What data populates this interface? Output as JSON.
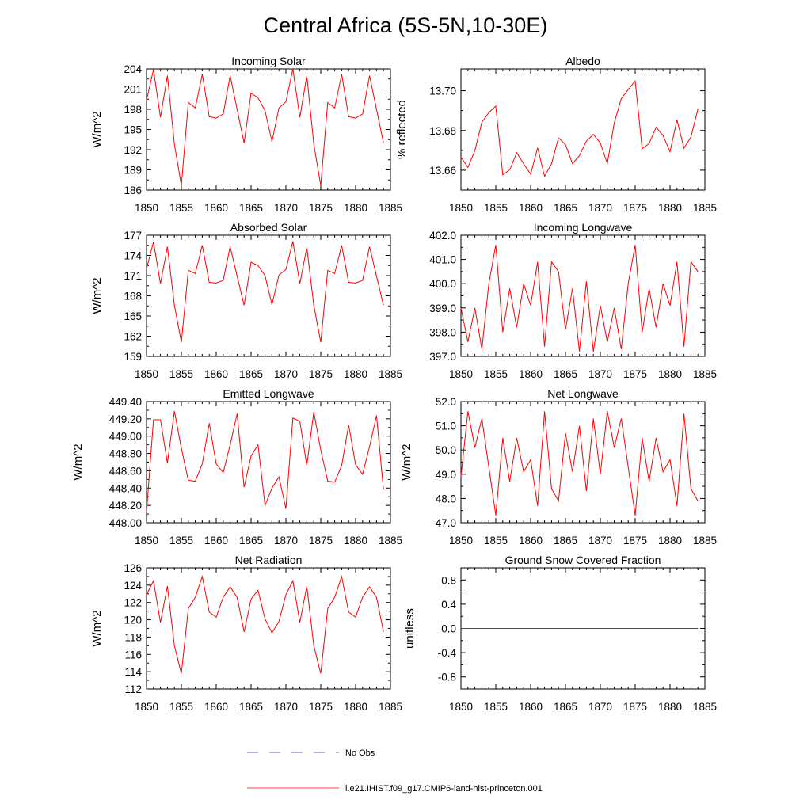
{
  "title": "Central Africa (5S-5N,10-30E)",
  "chart_data": [
    {
      "type": "line",
      "title": "Incoming Solar",
      "ylabel": "W/m^2",
      "xlabel": "",
      "xlim": [
        1850,
        1885
      ],
      "xticks": [
        1850,
        1855,
        1860,
        1865,
        1870,
        1875,
        1880,
        1885
      ],
      "ylim": [
        186,
        204
      ],
      "yticks": [
        186,
        189,
        192,
        195,
        198,
        201,
        204
      ],
      "ytick_labels": [
        "186",
        "189",
        "192",
        "195",
        "198",
        "201",
        "204"
      ],
      "grid": false,
      "series": [
        {
          "name": "i.e21.IHIST.f09_g17.CMIP6-land-hist-princeton.001",
          "color": "#ff0000",
          "x": [
            1850,
            1851,
            1852,
            1853,
            1854,
            1855,
            1856,
            1857,
            1858,
            1859,
            1860,
            1861,
            1862,
            1863,
            1864,
            1865,
            1866,
            1867,
            1868,
            1869,
            1870,
            1871,
            1872,
            1873,
            1874,
            1875,
            1876,
            1877,
            1878,
            1879,
            1880,
            1881,
            1882,
            1883,
            1884
          ],
          "values": [
            199.3,
            203.9,
            196.8,
            203.0,
            192.8,
            186.7,
            199.0,
            198.2,
            203.2,
            196.9,
            196.7,
            197.3,
            203.0,
            198.0,
            193.0,
            200.4,
            199.7,
            197.8,
            193.2,
            198.2,
            199.1,
            204.0,
            196.8,
            203.0,
            192.8,
            186.7,
            199.0,
            198.2,
            203.2,
            196.9,
            196.7,
            197.3,
            203.0,
            198.0,
            193.0
          ]
        }
      ]
    },
    {
      "type": "line",
      "title": "Albedo",
      "ylabel": "% reflected",
      "xlabel": "",
      "xlim": [
        1850,
        1885
      ],
      "xticks": [
        1850,
        1855,
        1860,
        1865,
        1870,
        1875,
        1880,
        1885
      ],
      "ylim": [
        13.65,
        13.711
      ],
      "yticks": [
        13.66,
        13.68,
        13.7
      ],
      "ytick_labels": [
        "13.66",
        "13.68",
        "13.70"
      ],
      "grid": false,
      "series": [
        {
          "name": "i.e21.IHIST.f09_g17.CMIP6-land-hist-princeton.001",
          "color": "#ff0000",
          "x": [
            1850,
            1851,
            1852,
            1853,
            1854,
            1855,
            1856,
            1857,
            1858,
            1859,
            1860,
            1861,
            1862,
            1863,
            1864,
            1865,
            1866,
            1867,
            1868,
            1869,
            1870,
            1871,
            1872,
            1873,
            1874,
            1875,
            1876,
            1877,
            1878,
            1879,
            1880,
            1881,
            1882,
            1883,
            1884
          ],
          "values": [
            13.6666,
            13.6614,
            13.6699,
            13.6842,
            13.689,
            13.6923,
            13.6577,
            13.6602,
            13.6688,
            13.6632,
            13.658,
            13.6713,
            13.6569,
            13.6633,
            13.6763,
            13.6729,
            13.6634,
            13.6673,
            13.6747,
            13.678,
            13.6737,
            13.6633,
            13.6839,
            13.696,
            13.7006,
            13.7049,
            13.6708,
            13.6734,
            13.6816,
            13.6775,
            13.6693,
            13.6854,
            13.6711,
            13.6767,
            13.6907
          ]
        }
      ]
    },
    {
      "type": "line",
      "title": "Absorbed Solar",
      "ylabel": "W/m^2",
      "xlabel": "",
      "xlim": [
        1850,
        1885
      ],
      "xticks": [
        1850,
        1855,
        1860,
        1865,
        1870,
        1875,
        1880,
        1885
      ],
      "ylim": [
        159,
        177
      ],
      "yticks": [
        159,
        162,
        165,
        168,
        171,
        174,
        177
      ],
      "ytick_labels": [
        "159",
        "162",
        "165",
        "168",
        "171",
        "174",
        "177"
      ],
      "grid": false,
      "series": [
        {
          "name": "i.e21.IHIST.f09_g17.CMIP6-land-hist-princeton.001",
          "color": "#ff0000",
          "x": [
            1850,
            1851,
            1852,
            1853,
            1854,
            1855,
            1856,
            1857,
            1858,
            1859,
            1860,
            1861,
            1862,
            1863,
            1864,
            1865,
            1866,
            1867,
            1868,
            1869,
            1870,
            1871,
            1872,
            1873,
            1874,
            1875,
            1876,
            1877,
            1878,
            1879,
            1880,
            1881,
            1882,
            1883,
            1884
          ],
          "values": [
            172.0,
            176.0,
            169.8,
            175.3,
            166.6,
            161.1,
            171.8,
            171.3,
            175.5,
            170.0,
            169.9,
            170.3,
            175.3,
            170.9,
            166.6,
            173.0,
            172.5,
            171.0,
            166.7,
            171.1,
            171.9,
            176.1,
            169.8,
            175.2,
            166.6,
            161.1,
            171.8,
            171.3,
            175.5,
            170.0,
            169.9,
            170.3,
            175.3,
            170.9,
            166.6
          ]
        }
      ]
    },
    {
      "type": "line",
      "title": "Incoming Longwave",
      "ylabel": "",
      "xlabel": "",
      "xlim": [
        1850,
        1885
      ],
      "xticks": [
        1850,
        1855,
        1860,
        1865,
        1870,
        1875,
        1880,
        1885
      ],
      "ylim": [
        397.0,
        402.0
      ],
      "yticks": [
        397.0,
        398.0,
        399.0,
        400.0,
        401.0,
        402.0
      ],
      "ytick_labels": [
        "397.0",
        "398.0",
        "399.0",
        "400.0",
        "401.0",
        "402.0"
      ],
      "grid": false,
      "series": [
        {
          "name": "i.e21.IHIST.f09_g17.CMIP6-land-hist-princeton.001",
          "color": "#ff0000",
          "x": [
            1850,
            1851,
            1852,
            1853,
            1854,
            1855,
            1856,
            1857,
            1858,
            1859,
            1860,
            1861,
            1862,
            1863,
            1864,
            1865,
            1866,
            1867,
            1868,
            1869,
            1870,
            1871,
            1872,
            1873,
            1874,
            1875,
            1876,
            1877,
            1878,
            1879,
            1880,
            1881,
            1882,
            1883,
            1884
          ],
          "values": [
            399.0,
            397.6,
            399.0,
            397.3,
            400.0,
            401.6,
            398.0,
            399.8,
            398.2,
            400.0,
            399.1,
            400.9,
            397.4,
            400.9,
            400.5,
            398.1,
            399.8,
            397.2,
            400.1,
            397.2,
            399.1,
            397.6,
            399.0,
            397.3,
            400.0,
            401.6,
            398.0,
            399.8,
            398.2,
            400.0,
            399.1,
            400.9,
            397.4,
            400.9,
            400.5
          ]
        }
      ]
    },
    {
      "type": "line",
      "title": "Emitted Longwave",
      "ylabel": "W/m^2",
      "xlabel": "",
      "xlim": [
        1850,
        1885
      ],
      "xticks": [
        1850,
        1855,
        1860,
        1865,
        1870,
        1875,
        1880,
        1885
      ],
      "ylim": [
        448.0,
        449.4
      ],
      "yticks": [
        448.0,
        448.2,
        448.4,
        448.6,
        448.8,
        449.0,
        449.2,
        449.4
      ],
      "ytick_labels": [
        "448.00",
        "448.20",
        "448.40",
        "448.60",
        "448.80",
        "449.00",
        "449.20",
        "449.40"
      ],
      "grid": false,
      "series": [
        {
          "name": "i.e21.IHIST.f09_g17.CMIP6-land-hist-princeton.001",
          "color": "#ff0000",
          "x": [
            1850,
            1851,
            1852,
            1853,
            1854,
            1855,
            1856,
            1857,
            1858,
            1859,
            1860,
            1861,
            1862,
            1863,
            1864,
            1865,
            1866,
            1867,
            1868,
            1869,
            1870,
            1871,
            1872,
            1873,
            1874,
            1875,
            1876,
            1877,
            1878,
            1879,
            1880,
            1881,
            1882,
            1883,
            1884
          ],
          "values": [
            448.12,
            449.19,
            449.19,
            448.69,
            449.29,
            448.86,
            448.49,
            448.48,
            448.68,
            449.15,
            448.68,
            448.58,
            448.9,
            449.26,
            448.41,
            448.77,
            448.9,
            448.2,
            448.4,
            448.53,
            448.16,
            449.21,
            449.17,
            448.66,
            449.28,
            448.84,
            448.48,
            448.47,
            448.66,
            449.13,
            448.67,
            448.56,
            448.88,
            449.24,
            448.38
          ]
        }
      ]
    },
    {
      "type": "line",
      "title": "Net Longwave",
      "ylabel": "W/m^2",
      "xlabel": "",
      "xlim": [
        1850,
        1885
      ],
      "xticks": [
        1850,
        1855,
        1860,
        1865,
        1870,
        1875,
        1880,
        1885
      ],
      "ylim": [
        47.0,
        52.0
      ],
      "yticks": [
        47.0,
        48.0,
        49.0,
        50.0,
        51.0,
        52.0
      ],
      "ytick_labels": [
        "47.0",
        "48.0",
        "49.0",
        "50.0",
        "51.0",
        "52.0"
      ],
      "grid": false,
      "series": [
        {
          "name": "i.e21.IHIST.f09_g17.CMIP6-land-hist-princeton.001",
          "color": "#ff0000",
          "x": [
            1850,
            1851,
            1852,
            1853,
            1854,
            1855,
            1856,
            1857,
            1858,
            1859,
            1860,
            1861,
            1862,
            1863,
            1864,
            1865,
            1866,
            1867,
            1868,
            1869,
            1870,
            1871,
            1872,
            1873,
            1874,
            1875,
            1876,
            1877,
            1878,
            1879,
            1880,
            1881,
            1882,
            1883,
            1884
          ],
          "values": [
            48.9,
            51.6,
            50.1,
            51.3,
            49.3,
            47.3,
            50.5,
            48.7,
            50.5,
            49.1,
            49.6,
            47.7,
            51.6,
            48.4,
            47.9,
            50.7,
            49.1,
            51.0,
            48.3,
            51.3,
            49.0,
            51.6,
            50.1,
            51.3,
            49.3,
            47.3,
            50.5,
            48.7,
            50.5,
            49.1,
            49.6,
            47.7,
            51.5,
            48.4,
            47.9
          ]
        }
      ]
    },
    {
      "type": "line",
      "title": "Net Radiation",
      "ylabel": "W/m^2",
      "xlabel": "",
      "xlim": [
        1850,
        1885
      ],
      "xticks": [
        1850,
        1855,
        1860,
        1865,
        1870,
        1875,
        1880,
        1885
      ],
      "ylim": [
        112,
        126
      ],
      "yticks": [
        112,
        114,
        116,
        118,
        120,
        122,
        124,
        126
      ],
      "ytick_labels": [
        "112",
        "114",
        "116",
        "118",
        "120",
        "122",
        "124",
        "126"
      ],
      "grid": false,
      "series": [
        {
          "name": "i.e21.IHIST.f09_g17.CMIP6-land-hist-princeton.001",
          "color": "#ff0000",
          "x": [
            1850,
            1851,
            1852,
            1853,
            1854,
            1855,
            1856,
            1857,
            1858,
            1859,
            1860,
            1861,
            1862,
            1863,
            1864,
            1865,
            1866,
            1867,
            1868,
            1869,
            1870,
            1871,
            1872,
            1873,
            1874,
            1875,
            1876,
            1877,
            1878,
            1879,
            1880,
            1881,
            1882,
            1883,
            1884
          ],
          "values": [
            122.9,
            124.5,
            119.7,
            123.9,
            117.0,
            113.8,
            121.3,
            122.6,
            125.0,
            120.9,
            120.3,
            122.6,
            123.8,
            122.6,
            118.6,
            122.4,
            123.4,
            120.1,
            118.5,
            119.8,
            122.9,
            124.5,
            119.7,
            123.9,
            117.0,
            113.8,
            121.3,
            122.6,
            125.0,
            120.9,
            120.3,
            122.6,
            123.8,
            122.6,
            118.6
          ]
        }
      ]
    },
    {
      "type": "line",
      "title": "Ground Snow Covered Fraction",
      "ylabel": "unitless",
      "xlabel": "",
      "xlim": [
        1850,
        1885
      ],
      "xticks": [
        1850,
        1855,
        1860,
        1865,
        1870,
        1875,
        1880,
        1885
      ],
      "ylim": [
        -1.0,
        1.0
      ],
      "yticks": [
        -0.8,
        -0.4,
        0.0,
        0.4,
        0.8
      ],
      "ytick_labels": [
        "-0.8",
        "-0.4",
        "0.0",
        "0.4",
        "0.8"
      ],
      "grid": false,
      "series": [
        {
          "name": "i.e21.IHIST.f09_g17.CMIP6-land-hist-princeton.001",
          "color": "#ff0000",
          "x": [
            1850,
            1884
          ],
          "values": [
            0.0,
            0.0
          ]
        }
      ]
    }
  ],
  "legend": {
    "placement": "bottom-center",
    "items": [
      {
        "label": "No Obs",
        "style": "dashed",
        "color": "#3333cc"
      },
      {
        "label": "i.e21.IHIST.f09_g17.CMIP6-land-hist-princeton.001",
        "style": "solid",
        "color": "#ff0000"
      }
    ]
  }
}
